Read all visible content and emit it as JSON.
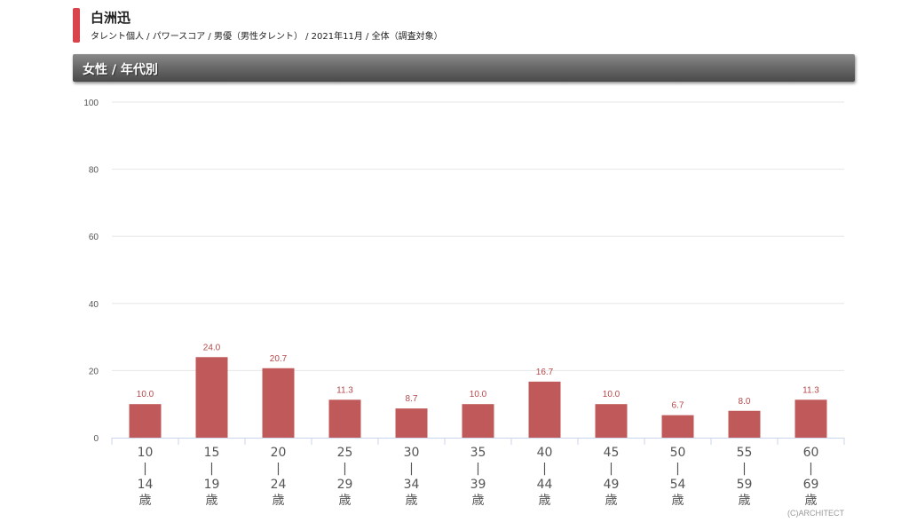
{
  "header": {
    "title": "白洲迅",
    "subtitle": "タレント個人 / パワースコア / 男優（男性タレント） / 2021年11月 / 全体（調査対象）"
  },
  "section": {
    "title": "女性 / 年代別"
  },
  "footer": {
    "copyright": "(C)ARCHITECT"
  },
  "colors": {
    "bar": "#c0595a",
    "label": "#b5484a",
    "grid": "#e6e6e6"
  },
  "chart_data": {
    "type": "bar",
    "categories": [
      [
        "10",
        "|",
        "14",
        "歳"
      ],
      [
        "15",
        "|",
        "19",
        "歳"
      ],
      [
        "20",
        "|",
        "24",
        "歳"
      ],
      [
        "25",
        "|",
        "29",
        "歳"
      ],
      [
        "30",
        "|",
        "34",
        "歳"
      ],
      [
        "35",
        "|",
        "39",
        "歳"
      ],
      [
        "40",
        "|",
        "44",
        "歳"
      ],
      [
        "45",
        "|",
        "49",
        "歳"
      ],
      [
        "50",
        "|",
        "54",
        "歳"
      ],
      [
        "55",
        "|",
        "59",
        "歳"
      ],
      [
        "60",
        "|",
        "69",
        "歳"
      ]
    ],
    "values": [
      10.0,
      24.0,
      20.7,
      11.3,
      8.7,
      10.0,
      16.7,
      10.0,
      6.7,
      8.0,
      11.3
    ],
    "value_labels": [
      "10.0",
      "24.0",
      "20.7",
      "11.3",
      "8.7",
      "10.0",
      "16.7",
      "10.0",
      "6.7",
      "8.0",
      "11.3"
    ],
    "yticks": [
      "0",
      "20",
      "40",
      "60",
      "80",
      "100"
    ],
    "ylim": [
      0,
      100
    ],
    "grid": true
  }
}
